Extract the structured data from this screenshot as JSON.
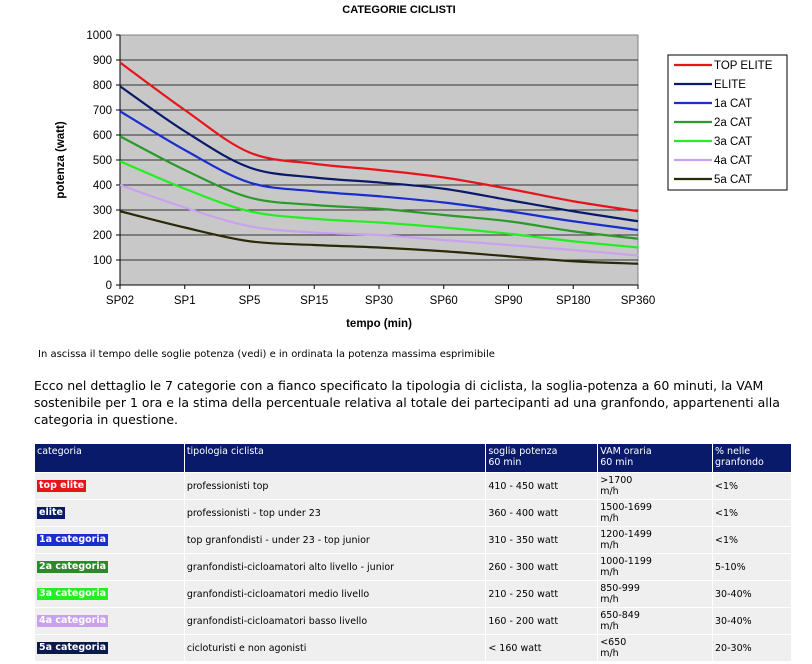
{
  "chart_data": {
    "type": "line",
    "title": "CATEGORIE CICLISTI",
    "xlabel": "tempo (min)",
    "ylabel": "potenza (watt)",
    "categories": [
      "SP02",
      "SP1",
      "SP5",
      "SP15",
      "SP30",
      "SP60",
      "SP90",
      "SP180",
      "SP360"
    ],
    "ylim": [
      0,
      1000
    ],
    "yticks": [
      0,
      100,
      200,
      300,
      400,
      500,
      600,
      700,
      800,
      900,
      1000
    ],
    "grid": true,
    "legend_position": "right",
    "series": [
      {
        "name": "TOP ELITE",
        "color": "#e8141c",
        "values": [
          890,
          700,
          530,
          485,
          460,
          430,
          385,
          335,
          295
        ]
      },
      {
        "name": "ELITE",
        "color": "#0a1a6b",
        "values": [
          795,
          615,
          470,
          430,
          410,
          385,
          340,
          295,
          255
        ]
      },
      {
        "name": "1a CAT",
        "color": "#1a2ecf",
        "values": [
          695,
          540,
          410,
          375,
          355,
          330,
          295,
          255,
          220
        ]
      },
      {
        "name": "2a CAT",
        "color": "#2a9a2a",
        "values": [
          595,
          460,
          350,
          320,
          305,
          280,
          255,
          215,
          185
        ]
      },
      {
        "name": "3a CAT",
        "color": "#22ee22",
        "values": [
          495,
          385,
          295,
          265,
          250,
          230,
          205,
          175,
          150
        ]
      },
      {
        "name": "4a CAT",
        "color": "#c9a2ef",
        "values": [
          400,
          310,
          235,
          210,
          200,
          180,
          160,
          140,
          118
        ]
      },
      {
        "name": "5a CAT",
        "color": "#2a2a08",
        "values": [
          295,
          230,
          175,
          160,
          150,
          135,
          115,
          95,
          85
        ]
      }
    ]
  },
  "caption": "In ascissa il tempo delle soglie potenza (vedi) e in ordinata la potenza massima esprimibile",
  "intro": "Ecco nel dettaglio le 7 categorie con a fianco specificato la tipologia di ciclista, la soglia-potenza a 60 minuti, la VAM sostenibile per 1 ora e la stima della percentuale relativa al totale dei partecipanti ad una granfondo, appartenenti alla categoria in questione.",
  "table": {
    "headers": [
      "categoria",
      "tipologia ciclista",
      "soglia potenza\n60 min",
      "VAM oraria\n60 min",
      "% nelle\ngranfondo"
    ],
    "rows": [
      {
        "categoria": "top elite",
        "color": "#e8141c",
        "tipologia": "professionisti top",
        "soglia": "410 - 450 watt",
        "vam": ">1700\nm/h",
        "perc": "<1%"
      },
      {
        "categoria": "elite",
        "color": "#0a1a6b",
        "tipologia": "professionisti - top under 23",
        "soglia": "360 - 400 watt",
        "vam": "1500-1699\nm/h",
        "perc": "<1%"
      },
      {
        "categoria": "1a categoria",
        "color": "#1a2ecf",
        "tipologia": "top granfondisti - under 23 - top junior",
        "soglia": "310 - 350 watt",
        "vam": "1200-1499\nm/h",
        "perc": "<1%"
      },
      {
        "categoria": "2a categoria",
        "color": "#2a8a2a",
        "tipologia": "granfondisti-cicloamatori alto livello - junior",
        "soglia": "260 - 300 watt",
        "vam": "1000-1199\nm/h",
        "perc": "5-10%"
      },
      {
        "categoria": "3a categoria",
        "color": "#22ee22",
        "tipologia": "granfondisti-cicloamatori medio livello",
        "soglia": "210 - 250 watt",
        "vam": "850-999\nm/h",
        "perc": "30-40%"
      },
      {
        "categoria": "4a categoria",
        "color": "#c9a2ef",
        "tipologia": "granfondisti-cicloamatori basso livello",
        "soglia": "160 - 200 watt",
        "vam": "650-849\nm/h",
        "perc": "30-40%"
      },
      {
        "categoria": "5a categoria",
        "color": "#0a1a4b",
        "tipologia": "cicloturisti e non agonisti",
        "soglia": "< 160 watt",
        "vam": "<650\nm/h",
        "perc": "20-30%"
      }
    ]
  }
}
